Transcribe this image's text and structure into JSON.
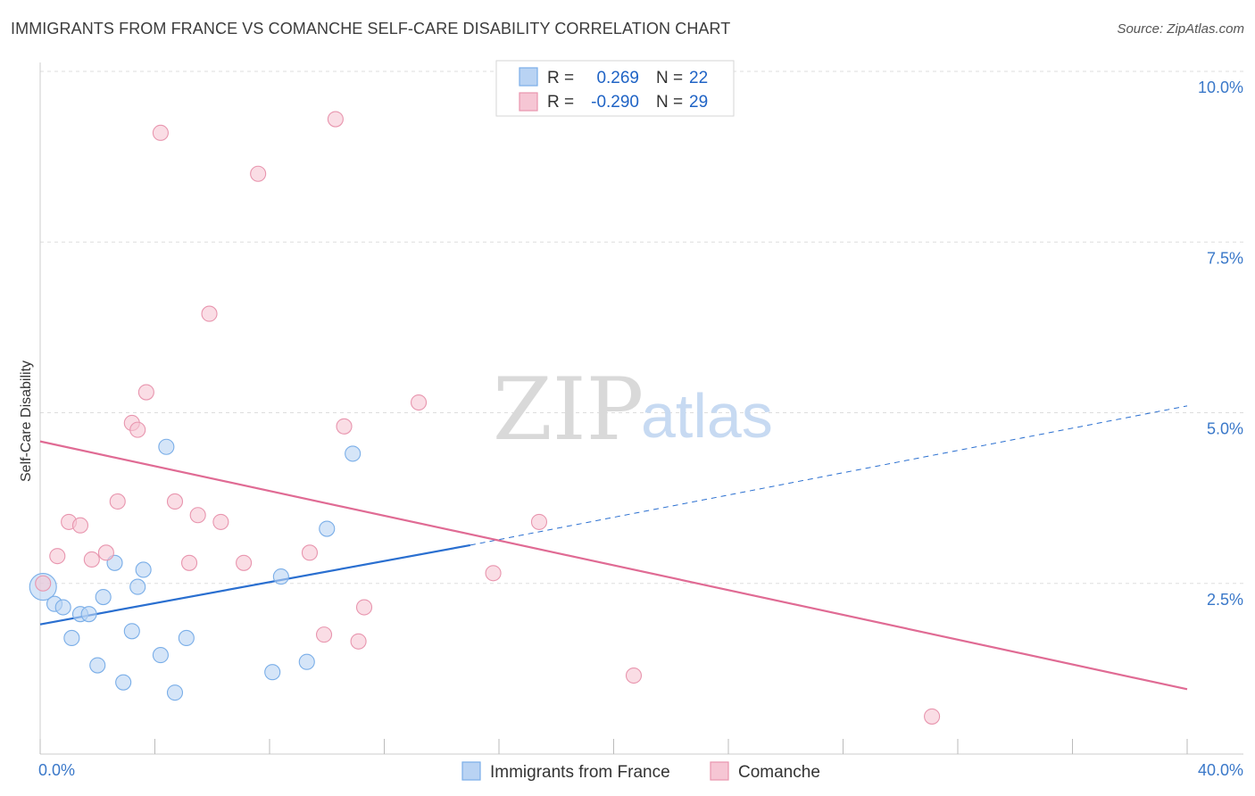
{
  "header": {
    "title": "IMMIGRANTS FROM FRANCE VS COMANCHE SELF-CARE DISABILITY CORRELATION CHART",
    "source": "Source: ZipAtlas.com"
  },
  "watermark": {
    "zip": "ZIP",
    "atlas": "atlas"
  },
  "legend": {
    "r_label": "R =",
    "n_label": "N =",
    "series": [
      {
        "name": "Immigrants from France",
        "r": "0.269",
        "n": "22",
        "color": "#7aaee8",
        "fill": "#b9d3f3"
      },
      {
        "name": "Comanche",
        "r": "-0.290",
        "n": "29",
        "color": "#e895ae",
        "fill": "#f6c6d4"
      }
    ]
  },
  "colors": {
    "blue_line": "#2a6fd0",
    "pink_line": "#e06b94",
    "tick_text": "#3a78c9",
    "grid": "#dddddd"
  },
  "chart_data": {
    "type": "scatter",
    "title": "IMMIGRANTS FROM FRANCE VS COMANCHE SELF-CARE DISABILITY CORRELATION CHART",
    "xlabel": "",
    "ylabel": "Self-Care Disability",
    "xlim": [
      0,
      40
    ],
    "ylim": [
      0,
      10.4
    ],
    "x_tick_labels": [
      "0.0%",
      "40.0%"
    ],
    "y_ticks": [
      2.5,
      5.0,
      7.5,
      10.0
    ],
    "y_tick_labels": [
      "2.5%",
      "5.0%",
      "7.5%",
      "10.0%"
    ],
    "grid": true,
    "series": [
      {
        "name": "Immigrants from France",
        "points": [
          [
            0.1,
            2.45
          ],
          [
            0.5,
            2.2
          ],
          [
            0.8,
            2.15
          ],
          [
            1.1,
            1.7
          ],
          [
            1.4,
            2.05
          ],
          [
            1.7,
            2.05
          ],
          [
            2.0,
            1.3
          ],
          [
            2.2,
            2.3
          ],
          [
            2.6,
            2.8
          ],
          [
            2.9,
            1.05
          ],
          [
            3.2,
            1.8
          ],
          [
            3.4,
            2.45
          ],
          [
            3.6,
            2.7
          ],
          [
            4.2,
            1.45
          ],
          [
            4.4,
            4.5
          ],
          [
            4.7,
            0.9
          ],
          [
            5.1,
            1.7
          ],
          [
            8.1,
            1.2
          ],
          [
            8.4,
            2.6
          ],
          [
            9.3,
            1.35
          ],
          [
            10.0,
            3.3
          ],
          [
            10.9,
            4.4
          ]
        ],
        "trend": {
          "x_start": 0,
          "y_start": 1.9,
          "x_solid_end": 15.0,
          "y_solid_end": 3.06,
          "x_dash_end": 40,
          "y_dash_end": 5.1
        }
      },
      {
        "name": "Comanche",
        "points": [
          [
            0.1,
            2.5
          ],
          [
            0.6,
            2.9
          ],
          [
            1.0,
            3.4
          ],
          [
            1.4,
            3.35
          ],
          [
            1.8,
            2.85
          ],
          [
            2.3,
            2.95
          ],
          [
            2.7,
            3.7
          ],
          [
            3.2,
            4.85
          ],
          [
            3.4,
            4.75
          ],
          [
            3.7,
            5.3
          ],
          [
            4.2,
            9.1
          ],
          [
            4.7,
            3.7
          ],
          [
            5.2,
            2.8
          ],
          [
            5.5,
            3.5
          ],
          [
            5.9,
            6.45
          ],
          [
            6.3,
            3.4
          ],
          [
            7.1,
            2.8
          ],
          [
            7.6,
            8.5
          ],
          [
            9.4,
            2.95
          ],
          [
            9.9,
            1.75
          ],
          [
            10.3,
            9.3
          ],
          [
            10.6,
            4.8
          ],
          [
            11.1,
            1.65
          ],
          [
            11.3,
            2.15
          ],
          [
            13.2,
            5.15
          ],
          [
            15.8,
            2.65
          ],
          [
            17.4,
            3.4
          ],
          [
            20.7,
            1.15
          ],
          [
            31.1,
            0.55
          ]
        ],
        "trend": {
          "x_start": 0,
          "y_start": 4.58,
          "x_end": 40,
          "y_end": 0.95
        }
      }
    ]
  }
}
